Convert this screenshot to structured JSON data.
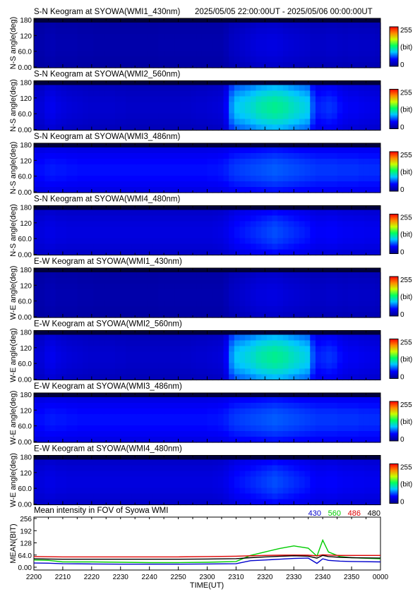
{
  "header": {
    "time_range": "2025/05/05 22:00:00UT - 2025/05/06 00:00:00UT"
  },
  "colorbar": {
    "max_label": "255",
    "unit_label": "(bit)",
    "min_label": "0"
  },
  "chart_data": [
    {
      "type": "heatmap",
      "title": "S-N Keogram at SYOWA(WMI1_430nm)",
      "ylabel": "N-S angle(deg)",
      "yticks": [
        "180",
        "120",
        "60.0",
        "0.00"
      ],
      "ylim": [
        0,
        180
      ],
      "base": [
        12,
        12,
        14,
        15,
        13,
        13,
        13,
        13,
        12,
        12,
        12,
        11,
        11,
        11,
        11,
        11,
        11,
        11,
        11,
        11,
        11,
        11,
        11,
        12,
        12,
        12,
        12,
        12,
        12,
        12,
        12,
        12,
        12,
        12,
        12,
        15,
        20,
        22,
        24,
        26,
        28,
        30,
        30,
        31,
        31,
        30,
        28,
        27,
        26,
        25,
        24,
        22,
        22,
        22,
        23,
        23,
        22,
        21,
        22,
        22,
        21,
        21,
        21,
        20
      ]
    },
    {
      "type": "heatmap",
      "title": "S-N Keogram at SYOWA(WMI2_560nm)",
      "ylabel": "N-S angle(deg)",
      "yticks": [
        "180",
        "120",
        "60.0",
        "0.00"
      ],
      "ylim": [
        0,
        180
      ],
      "base": [
        28,
        28,
        34,
        36,
        32,
        30,
        28,
        27,
        26,
        25,
        24,
        24,
        24,
        24,
        24,
        23,
        23,
        22,
        22,
        22,
        22,
        22,
        22,
        22,
        22,
        22,
        22,
        23,
        23,
        24,
        25,
        25,
        26,
        27,
        28,
        40,
        72,
        85,
        88,
        92,
        96,
        102,
        105,
        108,
        110,
        108,
        105,
        100,
        96,
        92,
        88,
        60,
        48,
        50,
        52,
        50,
        44,
        40,
        38,
        38,
        36,
        35,
        34,
        33
      ]
    },
    {
      "type": "heatmap",
      "title": "S-N Keogram at SYOWA(WMI3_486nm)",
      "ylabel": "N-S angle(deg)",
      "yticks": [
        "180",
        "120",
        "60.0",
        "0.00"
      ],
      "ylim": [
        0,
        180
      ],
      "base": [
        44,
        44,
        46,
        47,
        46,
        46,
        45,
        45,
        44,
        44,
        44,
        44,
        44,
        44,
        44,
        44,
        44,
        44,
        44,
        44,
        44,
        44,
        44,
        44,
        44,
        44,
        44,
        44,
        44,
        44,
        44,
        44,
        45,
        45,
        46,
        48,
        52,
        54,
        55,
        56,
        57,
        58,
        59,
        60,
        61,
        60,
        59,
        58,
        57,
        56,
        55,
        54,
        53,
        53,
        53,
        53,
        52,
        52,
        52,
        52,
        51,
        51,
        51,
        51
      ]
    },
    {
      "type": "heatmap",
      "title": "S-N Keogram at SYOWA(WMI4_480nm)",
      "ylabel": "N-S angle(deg)",
      "yticks": [
        "180",
        "120",
        "60.0",
        "0.00"
      ],
      "ylim": [
        0,
        180
      ],
      "base": [
        30,
        30,
        32,
        33,
        31,
        31,
        30,
        30,
        30,
        30,
        30,
        30,
        30,
        30,
        30,
        30,
        30,
        30,
        30,
        30,
        30,
        30,
        30,
        30,
        30,
        30,
        30,
        30,
        30,
        30,
        30,
        30,
        30,
        31,
        32,
        35,
        40,
        44,
        46,
        48,
        50,
        52,
        54,
        56,
        58,
        56,
        54,
        52,
        50,
        48,
        46,
        42,
        40,
        40,
        41,
        41,
        39,
        38,
        38,
        37,
        37,
        36,
        36,
        36
      ]
    },
    {
      "type": "heatmap",
      "title": "E-W Keogram at SYOWA(WMI1_430nm)",
      "ylabel": "W-E angle(deg)",
      "yticks": [
        "180",
        "120",
        "60.0",
        "0.00"
      ],
      "ylim": [
        0,
        180
      ],
      "base": [
        12,
        12,
        14,
        15,
        13,
        13,
        13,
        13,
        12,
        12,
        12,
        11,
        11,
        11,
        11,
        11,
        11,
        11,
        11,
        11,
        11,
        11,
        11,
        12,
        12,
        12,
        12,
        12,
        12,
        12,
        12,
        12,
        12,
        12,
        12,
        15,
        20,
        22,
        24,
        26,
        28,
        30,
        30,
        31,
        31,
        30,
        28,
        27,
        26,
        25,
        24,
        22,
        22,
        22,
        23,
        23,
        22,
        21,
        22,
        22,
        21,
        21,
        21,
        20
      ]
    },
    {
      "type": "heatmap",
      "title": "E-W Keogram at SYOWA(WMI2_560nm)",
      "ylabel": "W-E angle(deg)",
      "yticks": [
        "180",
        "120",
        "60.0",
        "0.00"
      ],
      "ylim": [
        0,
        180
      ],
      "base": [
        28,
        28,
        34,
        36,
        32,
        30,
        28,
        27,
        26,
        25,
        24,
        24,
        24,
        24,
        24,
        23,
        23,
        22,
        22,
        22,
        22,
        22,
        22,
        22,
        22,
        22,
        22,
        23,
        23,
        24,
        25,
        25,
        26,
        27,
        28,
        40,
        72,
        85,
        88,
        92,
        96,
        102,
        105,
        108,
        110,
        108,
        105,
        100,
        96,
        92,
        88,
        60,
        48,
        50,
        52,
        50,
        44,
        40,
        38,
        38,
        36,
        35,
        34,
        33
      ]
    },
    {
      "type": "heatmap",
      "title": "E-W Keogram at SYOWA(WMI3_486nm)",
      "ylabel": "W-E angle(deg)",
      "yticks": [
        "180",
        "120",
        "60.0",
        "0.00"
      ],
      "ylim": [
        0,
        180
      ],
      "base": [
        44,
        44,
        46,
        47,
        46,
        46,
        45,
        45,
        44,
        44,
        44,
        44,
        44,
        44,
        44,
        44,
        44,
        44,
        44,
        44,
        44,
        44,
        44,
        44,
        44,
        44,
        44,
        44,
        44,
        44,
        44,
        44,
        45,
        45,
        46,
        48,
        52,
        54,
        55,
        56,
        57,
        58,
        59,
        60,
        61,
        60,
        59,
        58,
        57,
        56,
        55,
        54,
        53,
        53,
        53,
        53,
        52,
        52,
        52,
        52,
        51,
        51,
        51,
        51
      ]
    },
    {
      "type": "heatmap",
      "title": "E-W Keogram at SYOWA(WMI4_480nm)",
      "ylabel": "W-E angle(deg)",
      "yticks": [
        "180",
        "120",
        "60.0",
        "0.00"
      ],
      "ylim": [
        0,
        180
      ],
      "base": [
        30,
        30,
        32,
        33,
        31,
        31,
        30,
        30,
        30,
        30,
        30,
        30,
        30,
        30,
        30,
        30,
        30,
        30,
        30,
        30,
        30,
        30,
        30,
        30,
        30,
        30,
        30,
        30,
        30,
        30,
        30,
        30,
        30,
        31,
        32,
        35,
        40,
        44,
        46,
        48,
        50,
        52,
        54,
        56,
        58,
        56,
        54,
        52,
        50,
        48,
        46,
        42,
        40,
        40,
        41,
        41,
        39,
        38,
        38,
        37,
        37,
        36,
        36,
        36
      ]
    },
    {
      "type": "line",
      "title": "Mean intensity in FOV of Syowa WMI",
      "xlabel": "TIME(UT)",
      "ylabel": "MEAN(BIT)",
      "xticks": [
        "2200",
        "2210",
        "2220",
        "2230",
        "2240",
        "2250",
        "2300",
        "2310",
        "2320",
        "2330",
        "2340",
        "2350",
        "0000"
      ],
      "yticks": [
        "256",
        "192",
        "128",
        "64.0",
        "0.00"
      ],
      "ylim": [
        0,
        256
      ],
      "x": [
        0,
        5,
        10,
        20,
        30,
        40,
        50,
        60,
        70,
        75,
        80,
        85,
        90,
        95,
        98,
        100,
        102,
        106,
        110,
        120
      ],
      "series": [
        {
          "name": "430",
          "color": "#0000cc",
          "values": [
            22,
            21,
            18,
            17,
            16,
            16,
            16,
            17,
            18,
            34,
            38,
            42,
            46,
            48,
            20,
            44,
            36,
            32,
            30,
            28
          ]
        },
        {
          "name": "560",
          "color": "#00cc00",
          "values": [
            38,
            36,
            28,
            28,
            26,
            24,
            24,
            26,
            30,
            62,
            80,
            98,
            112,
            100,
            58,
            142,
            80,
            56,
            50,
            44
          ]
        },
        {
          "name": "486",
          "color": "#dd0000",
          "values": [
            56,
            55,
            54,
            54,
            54,
            54,
            54,
            56,
            58,
            60,
            62,
            63,
            64,
            63,
            60,
            65,
            64,
            62,
            62,
            62
          ]
        },
        {
          "name": "480",
          "color": "#000000",
          "values": [
            44,
            43,
            42,
            42,
            42,
            42,
            42,
            43,
            45,
            50,
            54,
            57,
            60,
            58,
            48,
            62,
            56,
            52,
            50,
            48
          ]
        }
      ]
    }
  ]
}
